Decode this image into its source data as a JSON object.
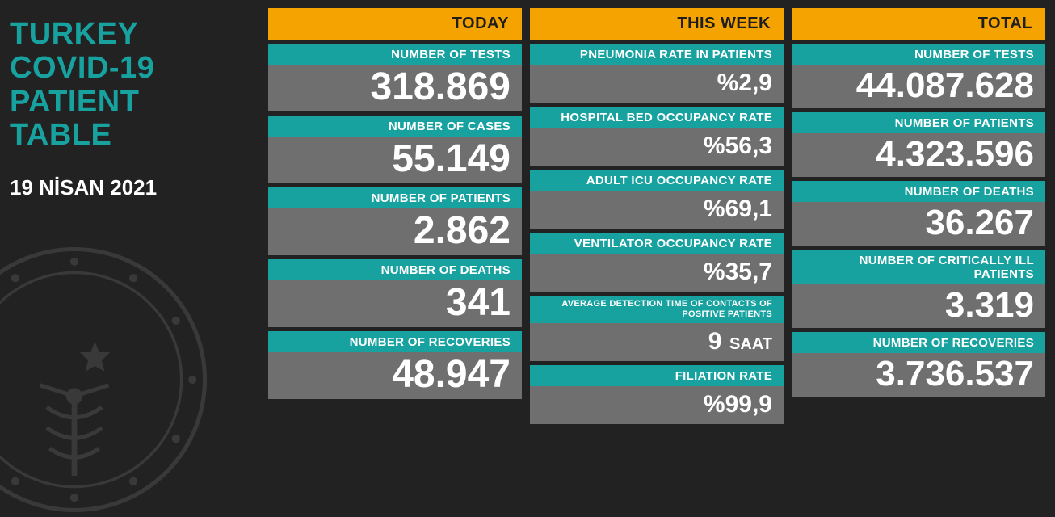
{
  "colors": {
    "background": "#222222",
    "accent_teal": "#17a2a0",
    "accent_orange": "#f4a300",
    "value_bg": "#6f6f6f",
    "text_white": "#ffffff",
    "header_text": "#1e1e1e"
  },
  "title_lines": [
    "TURKEY",
    "COVID-19",
    "PATIENT",
    "TABLE"
  ],
  "date": "19 NİSAN 2021",
  "columns": {
    "today": {
      "header": "TODAY",
      "stats": [
        {
          "label": "NUMBER OF TESTS",
          "value": "318.869"
        },
        {
          "label": "NUMBER OF CASES",
          "value": "55.149"
        },
        {
          "label": "NUMBER OF PATIENTS",
          "value": "2.862"
        },
        {
          "label": "NUMBER OF DEATHS",
          "value": "341"
        },
        {
          "label": "NUMBER OF RECOVERIES",
          "value": "48.947"
        }
      ]
    },
    "week": {
      "header": "THIS WEEK",
      "stats": [
        {
          "label": "PNEUMONIA RATE IN PATIENTS",
          "value": "%2,9"
        },
        {
          "label": "HOSPITAL BED OCCUPANCY RATE",
          "value": "%56,3"
        },
        {
          "label": "ADULT ICU OCCUPANCY RATE",
          "value": "%69,1"
        },
        {
          "label": "VENTILATOR OCCUPANCY RATE",
          "value": "%35,7"
        },
        {
          "label": "AVERAGE DETECTION TIME OF CONTACTS OF POSITIVE PATIENTS",
          "value": "9",
          "unit": "SAAT",
          "small": true
        },
        {
          "label": "FILIATION RATE",
          "value": "%99,9"
        }
      ]
    },
    "total": {
      "header": "TOTAL",
      "stats": [
        {
          "label": "NUMBER OF TESTS",
          "value": "44.087.628"
        },
        {
          "label": "NUMBER OF PATIENTS",
          "value": "4.323.596"
        },
        {
          "label": "NUMBER OF DEATHS",
          "value": "36.267"
        },
        {
          "label": "NUMBER OF CRITICALLY ILL PATIENTS",
          "value": "3.319"
        },
        {
          "label": "NUMBER OF RECOVERIES",
          "value": "3.736.537"
        }
      ]
    }
  }
}
